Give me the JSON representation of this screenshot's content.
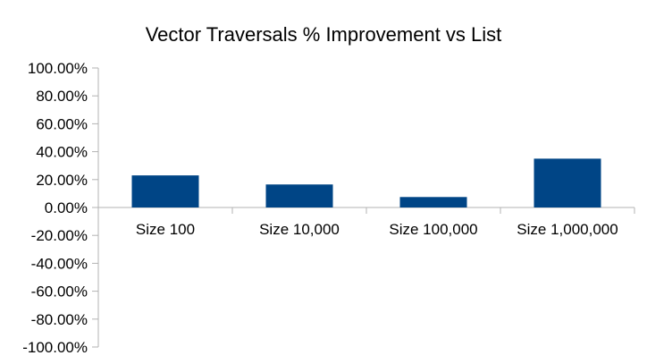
{
  "chart_data": {
    "type": "bar",
    "title": "Vector Traversals % Improvement vs List",
    "xlabel": "",
    "ylabel": "",
    "categories": [
      "Size 100",
      "Size 10,000",
      "Size 100,000",
      "Size 1,000,000"
    ],
    "values": [
      23.0,
      16.5,
      7.5,
      35.0
    ],
    "ylim": [
      -100,
      100
    ],
    "y_ticks": [
      100,
      80,
      60,
      40,
      20,
      0,
      -20,
      -40,
      -60,
      -80,
      -100
    ],
    "y_tick_labels": [
      "100.00%",
      "80.00%",
      "60.00%",
      "40.00%",
      "20.00%",
      "0.00%",
      "-20.00%",
      "-40.00%",
      "-60.00%",
      "-80.00%",
      "-100.00%"
    ],
    "grid": false,
    "legend": "none",
    "bar_color": "#004586",
    "axis_color": "#b3b3b3"
  }
}
